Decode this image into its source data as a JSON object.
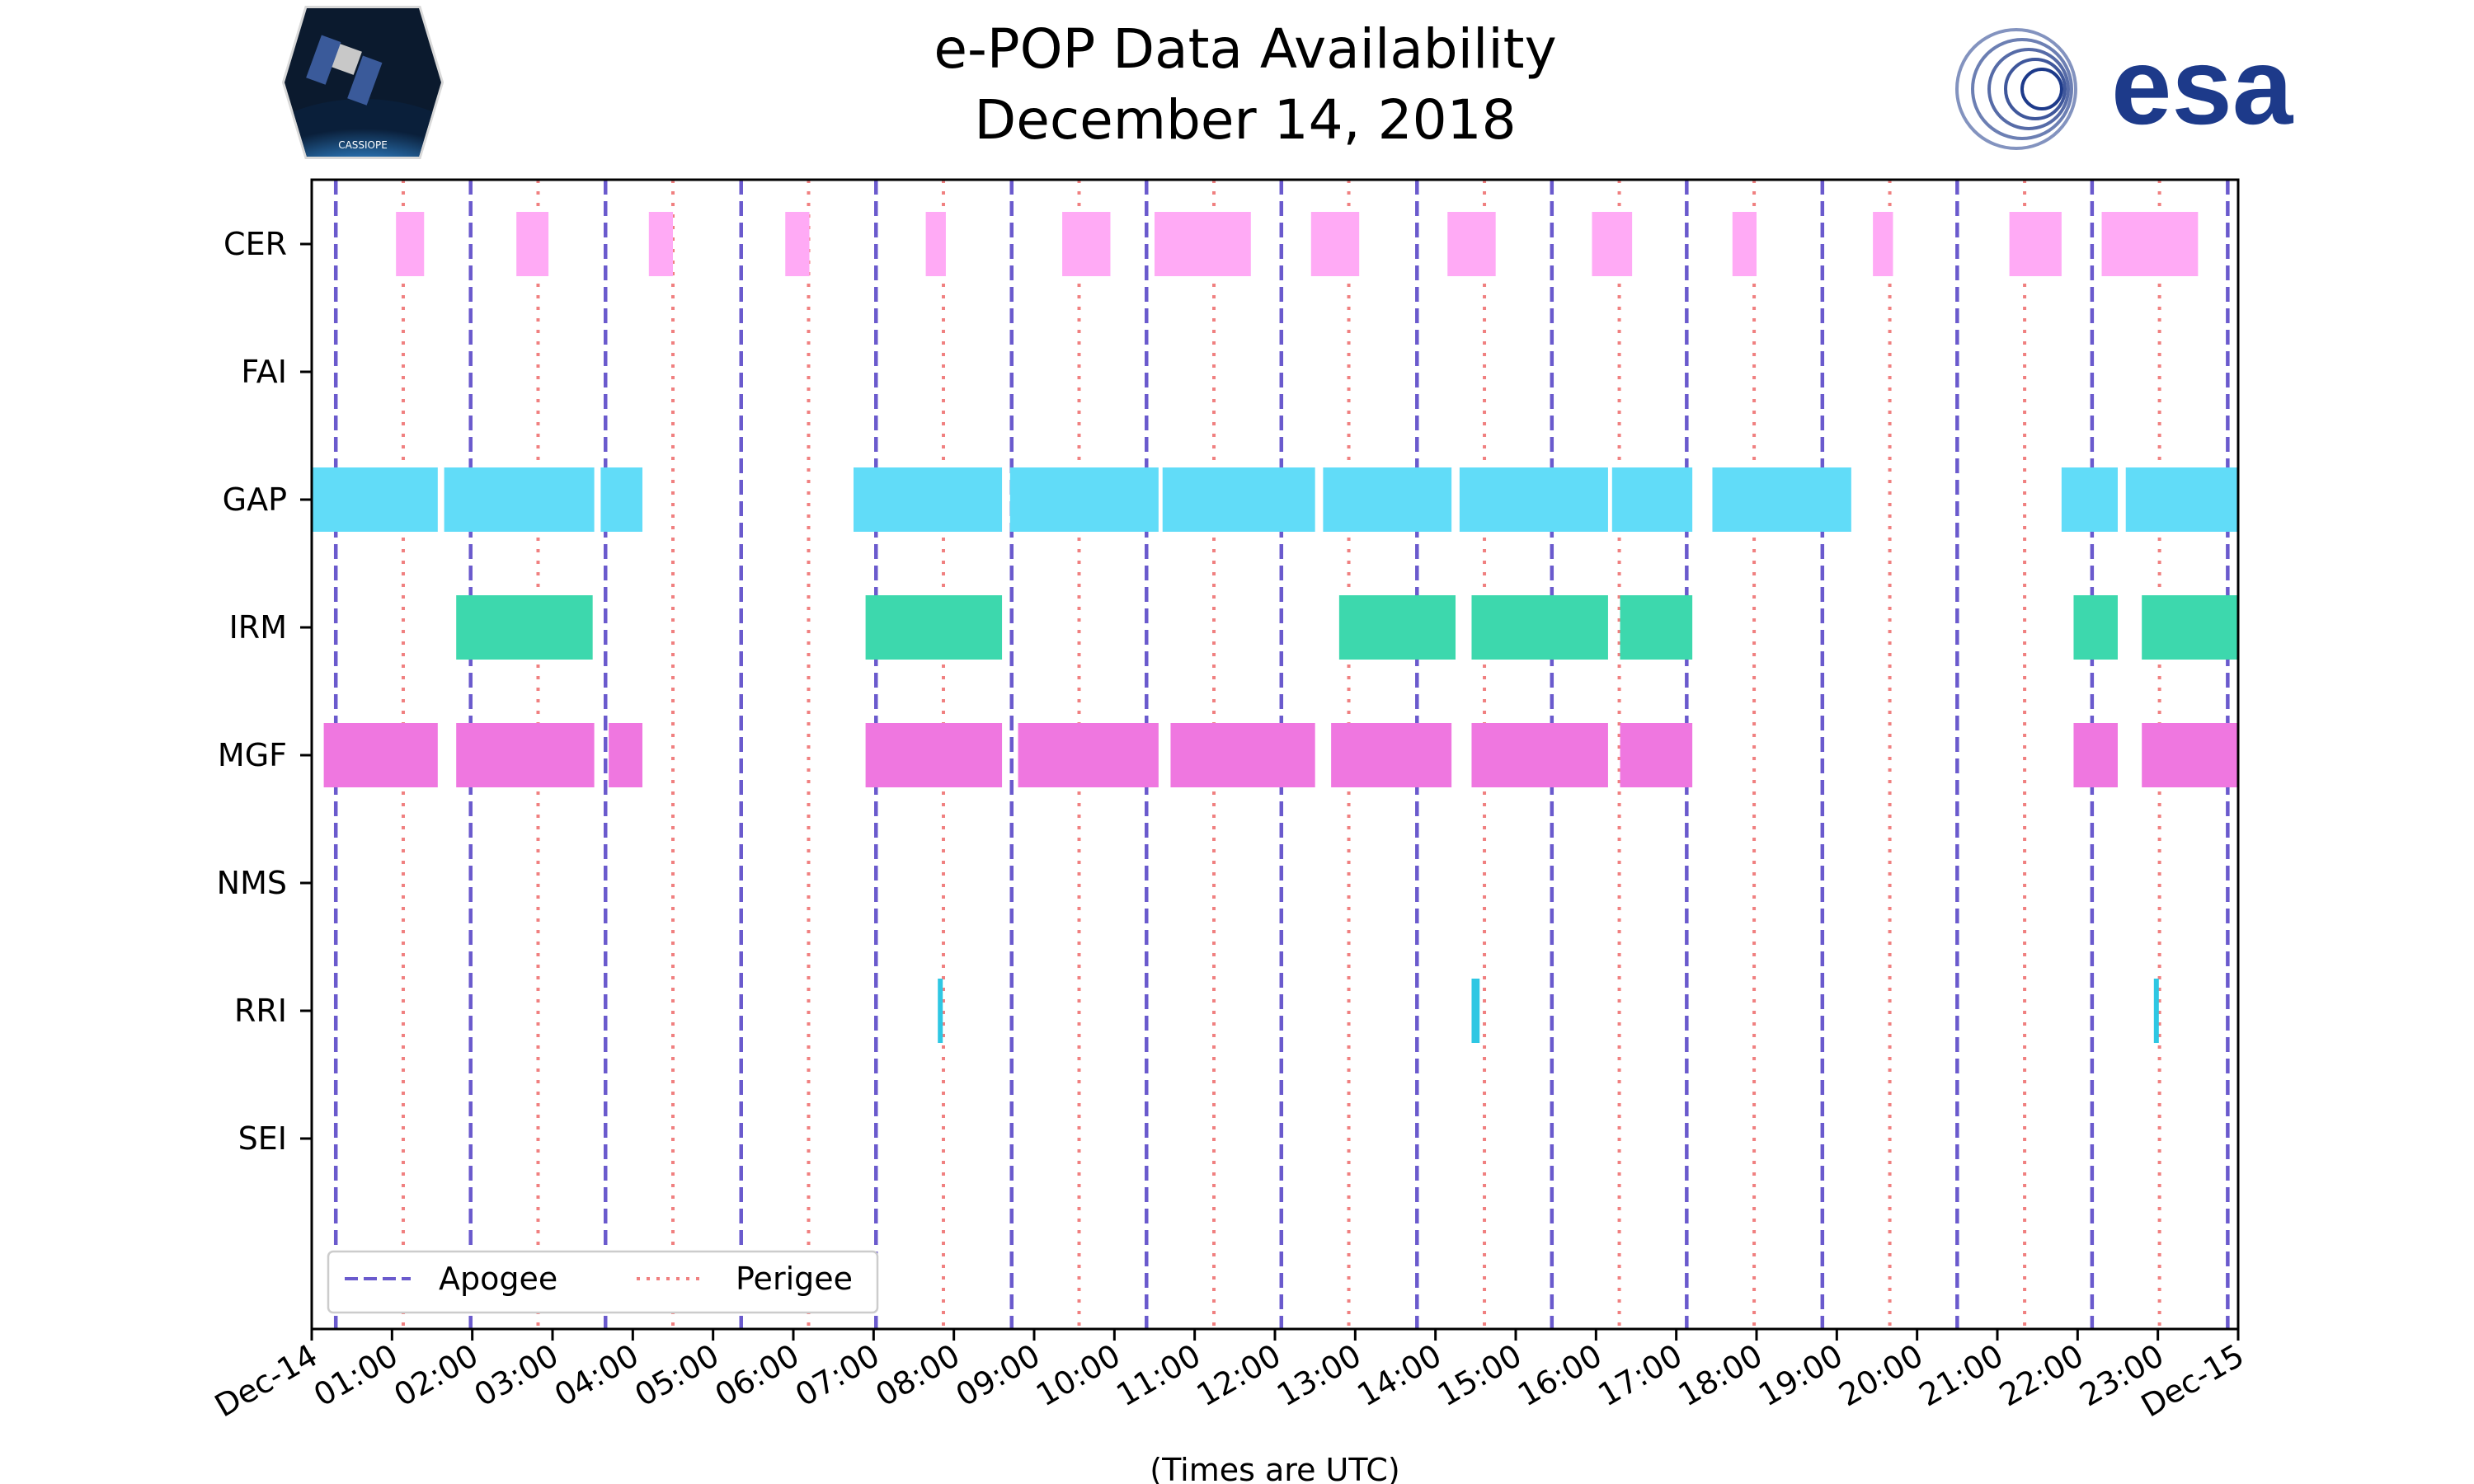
{
  "chart_data": {
    "type": "timeline",
    "title": "e-POP Data Availability",
    "subtitle": "December 14, 2018",
    "xlabel": "(Times are UTC)",
    "xlim_hours": [
      0,
      24
    ],
    "x_tick_labels": [
      "Dec-14",
      "01:00",
      "02:00",
      "03:00",
      "04:00",
      "05:00",
      "06:00",
      "07:00",
      "08:00",
      "09:00",
      "10:00",
      "11:00",
      "12:00",
      "13:00",
      "14:00",
      "15:00",
      "16:00",
      "17:00",
      "18:00",
      "19:00",
      "20:00",
      "21:00",
      "22:00",
      "23:00",
      "Dec-15"
    ],
    "categories": [
      "CER",
      "FAI",
      "GAP",
      "IRM",
      "MGF",
      "NMS",
      "RRI",
      "SEI"
    ],
    "colors": {
      "CER": "#ffaaf5",
      "GAP": "#61dcf8",
      "IRM": "#3dd8ad",
      "MGF": "#ef77e0",
      "RRI": "#2ec7e3",
      "apogee": "#6a5acd",
      "perigee": "#f08080"
    },
    "series": [
      {
        "name": "CER",
        "intervals": [
          [
            1.05,
            1.4
          ],
          [
            2.55,
            2.95
          ],
          [
            4.2,
            4.5
          ],
          [
            5.9,
            6.2
          ],
          [
            7.65,
            7.9
          ],
          [
            9.35,
            9.95
          ],
          [
            10.5,
            11.7
          ],
          [
            12.45,
            13.05
          ],
          [
            14.15,
            14.75
          ],
          [
            15.95,
            16.45
          ],
          [
            17.7,
            18.0
          ],
          [
            19.45,
            19.7
          ],
          [
            21.15,
            21.8
          ],
          [
            22.3,
            23.5
          ]
        ]
      },
      {
        "name": "FAI",
        "intervals": []
      },
      {
        "name": "GAP",
        "intervals": [
          [
            0.0,
            1.57
          ],
          [
            1.65,
            3.52
          ],
          [
            3.6,
            4.12
          ],
          [
            6.75,
            8.6
          ],
          [
            8.7,
            10.55
          ],
          [
            10.6,
            12.5
          ],
          [
            12.6,
            14.2
          ],
          [
            14.3,
            16.15
          ],
          [
            16.2,
            17.2
          ],
          [
            17.45,
            19.18
          ],
          [
            21.8,
            22.5
          ],
          [
            22.6,
            24.0
          ]
        ]
      },
      {
        "name": "IRM",
        "intervals": [
          [
            1.8,
            3.5
          ],
          [
            6.9,
            8.6
          ],
          [
            12.8,
            14.25
          ],
          [
            14.45,
            16.15
          ],
          [
            16.3,
            17.2
          ],
          [
            21.95,
            22.5
          ],
          [
            22.8,
            24.0
          ]
        ]
      },
      {
        "name": "MGF",
        "intervals": [
          [
            0.15,
            1.57
          ],
          [
            1.8,
            3.52
          ],
          [
            3.7,
            4.12
          ],
          [
            6.9,
            8.6
          ],
          [
            8.8,
            10.55
          ],
          [
            10.7,
            12.5
          ],
          [
            12.7,
            14.2
          ],
          [
            14.45,
            16.15
          ],
          [
            16.3,
            17.2
          ],
          [
            21.95,
            22.5
          ],
          [
            22.8,
            24.0
          ]
        ]
      },
      {
        "name": "NMS",
        "intervals": []
      },
      {
        "name": "RRI",
        "intervals": [
          [
            7.8,
            7.85
          ],
          [
            14.45,
            14.55
          ],
          [
            22.95,
            23.0
          ]
        ]
      },
      {
        "name": "SEI",
        "intervals": []
      }
    ],
    "apogee_hours": [
      0.3,
      1.98,
      3.66,
      5.35,
      7.03,
      8.72,
      10.4,
      12.08,
      13.77,
      15.45,
      17.13,
      18.82,
      20.5,
      22.18,
      23.87
    ],
    "perigee_hours": [
      1.14,
      2.82,
      4.5,
      6.19,
      7.87,
      9.56,
      11.24,
      12.92,
      14.61,
      16.29,
      17.97,
      19.66,
      21.34,
      23.02
    ],
    "legend": {
      "position": "bottom-left",
      "items": [
        "Apogee",
        "Perigee"
      ]
    }
  },
  "logos": {
    "left": {
      "text": "CASSIOPE"
    },
    "right": {
      "text": "esa"
    }
  }
}
